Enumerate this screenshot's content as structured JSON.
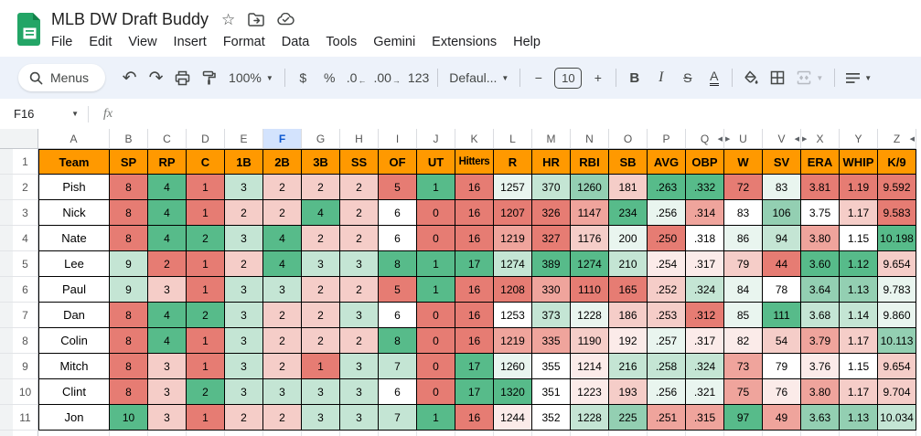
{
  "titlebar": {
    "title": "MLB DW Draft Buddy",
    "icons": [
      "star-icon",
      "move-folder-icon",
      "cloud-saved-icon"
    ],
    "menus": [
      "File",
      "Edit",
      "View",
      "Insert",
      "Format",
      "Data",
      "Tools",
      "Gemini",
      "Extensions",
      "Help"
    ]
  },
  "toolbar": {
    "menus_label": "Menus",
    "zoom_value": "100%",
    "currency_label": "$",
    "percent_label": "%",
    "decrease_decimal_label": ".0",
    "increase_decimal_label": ".00",
    "more_formats_label": "123",
    "font_value": "Defaul...",
    "font_size_value": "10",
    "bold_label": "B",
    "italic_label": "I",
    "strikethrough_label": "S",
    "text_color_label": "A"
  },
  "formula_bar": {
    "name_box_value": "F16",
    "fx_label": "fx"
  },
  "colors": {
    "header_fill": "#ff9900",
    "selected_column_bg": "#d3e3fd",
    "selected_column_text": "#0b57d0",
    "toolbar_bg": "#edf2fa",
    "scale_min_red": "#e67c73",
    "scale_mid_white": "#ffffff",
    "scale_max_green": "#57bb8a"
  },
  "sheet": {
    "palette": {
      "p3": "#E67C73",
      "p2": "#EFA49C",
      "p1": "#F5CDC8",
      "p0": "#FBEBE9",
      "w": "#FFFFFF",
      "g0": "#E9F5EF",
      "g1": "#C4E5D4",
      "g2": "#93CFB2",
      "g3": "#57BB8A"
    },
    "columns": [
      {
        "letter": "A",
        "wide": true
      },
      {
        "letter": "B"
      },
      {
        "letter": "C"
      },
      {
        "letter": "D"
      },
      {
        "letter": "E"
      },
      {
        "letter": "F",
        "selected": true
      },
      {
        "letter": "G"
      },
      {
        "letter": "H"
      },
      {
        "letter": "I"
      },
      {
        "letter": "J"
      },
      {
        "letter": "K"
      },
      {
        "letter": "L"
      },
      {
        "letter": "M"
      },
      {
        "letter": "N"
      },
      {
        "letter": "O"
      },
      {
        "letter": "P"
      },
      {
        "letter": "Q",
        "hidden_after": true
      },
      {
        "letter": "U",
        "hidden_before": true
      },
      {
        "letter": "V",
        "hidden_after": true
      },
      {
        "letter": "X",
        "hidden_before": true
      },
      {
        "letter": "Y"
      },
      {
        "letter": "Z",
        "hidden_after": true
      }
    ],
    "header_row": {
      "row_num": "1",
      "cells": [
        "Team",
        "SP",
        "RP",
        "C",
        "1B",
        "2B",
        "3B",
        "SS",
        "OF",
        "UT",
        "Hitters",
        "R",
        "HR",
        "RBI",
        "SB",
        "AVG",
        "OBP",
        "W",
        "SV",
        "ERA",
        "WHIP",
        "K/9"
      ]
    },
    "rows": [
      {
        "n": "2",
        "team": "Pish",
        "cells": [
          [
            "8",
            "p3"
          ],
          [
            "4",
            "g3"
          ],
          [
            "1",
            "p3"
          ],
          [
            "3",
            "g1"
          ],
          [
            "2",
            "p1"
          ],
          [
            "2",
            "p1"
          ],
          [
            "2",
            "p1"
          ],
          [
            "5",
            "p3"
          ],
          [
            "1",
            "g3"
          ],
          [
            "16",
            "p3"
          ],
          [
            "1257",
            "g0"
          ],
          [
            "370",
            "g1"
          ],
          [
            "1260",
            "g2"
          ],
          [
            "181",
            "p1"
          ],
          [
            ".263",
            "g3"
          ],
          [
            ".332",
            "g3"
          ],
          [
            "72",
            "p3"
          ],
          [
            "83",
            "g0"
          ],
          [
            "3.81",
            "p3"
          ],
          [
            "1.19",
            "p3"
          ],
          [
            "9.592",
            "p3"
          ]
        ]
      },
      {
        "n": "3",
        "team": "Nick",
        "cells": [
          [
            "8",
            "p3"
          ],
          [
            "4",
            "g3"
          ],
          [
            "1",
            "p3"
          ],
          [
            "2",
            "p1"
          ],
          [
            "2",
            "p1"
          ],
          [
            "4",
            "g3"
          ],
          [
            "2",
            "p1"
          ],
          [
            "6",
            "w"
          ],
          [
            "0",
            "p3"
          ],
          [
            "16",
            "p3"
          ],
          [
            "1207",
            "p3"
          ],
          [
            "326",
            "p3"
          ],
          [
            "1147",
            "p2"
          ],
          [
            "234",
            "g3"
          ],
          [
            ".256",
            "g0"
          ],
          [
            ".314",
            "p2"
          ],
          [
            "83",
            "w"
          ],
          [
            "106",
            "g2"
          ],
          [
            "3.75",
            "w"
          ],
          [
            "1.17",
            "p1"
          ],
          [
            "9.583",
            "p3"
          ]
        ]
      },
      {
        "n": "4",
        "team": "Nate",
        "cells": [
          [
            "8",
            "p3"
          ],
          [
            "4",
            "g3"
          ],
          [
            "2",
            "g3"
          ],
          [
            "3",
            "g1"
          ],
          [
            "4",
            "g3"
          ],
          [
            "2",
            "p1"
          ],
          [
            "2",
            "p1"
          ],
          [
            "6",
            "w"
          ],
          [
            "0",
            "p3"
          ],
          [
            "16",
            "p3"
          ],
          [
            "1219",
            "p2"
          ],
          [
            "327",
            "p3"
          ],
          [
            "1176",
            "p1"
          ],
          [
            "200",
            "g0"
          ],
          [
            ".250",
            "p3"
          ],
          [
            ".318",
            "w"
          ],
          [
            "86",
            "g0"
          ],
          [
            "94",
            "g1"
          ],
          [
            "3.80",
            "p2"
          ],
          [
            "1.15",
            "w"
          ],
          [
            "10.198",
            "g3"
          ]
        ]
      },
      {
        "n": "5",
        "team": "Lee",
        "cells": [
          [
            "9",
            "g1"
          ],
          [
            "2",
            "p3"
          ],
          [
            "1",
            "p3"
          ],
          [
            "2",
            "p1"
          ],
          [
            "4",
            "g3"
          ],
          [
            "3",
            "g1"
          ],
          [
            "3",
            "g1"
          ],
          [
            "8",
            "g3"
          ],
          [
            "1",
            "g3"
          ],
          [
            "17",
            "g3"
          ],
          [
            "1274",
            "g1"
          ],
          [
            "389",
            "g3"
          ],
          [
            "1274",
            "g3"
          ],
          [
            "210",
            "g1"
          ],
          [
            ".254",
            "p0"
          ],
          [
            ".317",
            "p0"
          ],
          [
            "79",
            "p1"
          ],
          [
            "44",
            "p3"
          ],
          [
            "3.60",
            "g3"
          ],
          [
            "1.12",
            "g3"
          ],
          [
            "9.654",
            "p1"
          ]
        ]
      },
      {
        "n": "6",
        "team": "Paul",
        "cells": [
          [
            "9",
            "g1"
          ],
          [
            "3",
            "p1"
          ],
          [
            "1",
            "p3"
          ],
          [
            "3",
            "g1"
          ],
          [
            "3",
            "g1"
          ],
          [
            "2",
            "p1"
          ],
          [
            "2",
            "p1"
          ],
          [
            "5",
            "p3"
          ],
          [
            "1",
            "g3"
          ],
          [
            "16",
            "p3"
          ],
          [
            "1208",
            "p3"
          ],
          [
            "330",
            "p2"
          ],
          [
            "1110",
            "p3"
          ],
          [
            "165",
            "p3"
          ],
          [
            ".252",
            "p1"
          ],
          [
            ".324",
            "g1"
          ],
          [
            "84",
            "g0"
          ],
          [
            "78",
            "w"
          ],
          [
            "3.64",
            "g2"
          ],
          [
            "1.13",
            "g2"
          ],
          [
            "9.783",
            "g0"
          ]
        ]
      },
      {
        "n": "7",
        "team": "Dan",
        "cells": [
          [
            "8",
            "p3"
          ],
          [
            "4",
            "g3"
          ],
          [
            "2",
            "g3"
          ],
          [
            "3",
            "g1"
          ],
          [
            "2",
            "p1"
          ],
          [
            "2",
            "p1"
          ],
          [
            "3",
            "g1"
          ],
          [
            "6",
            "w"
          ],
          [
            "0",
            "p3"
          ],
          [
            "16",
            "p3"
          ],
          [
            "1253",
            "w"
          ],
          [
            "373",
            "g1"
          ],
          [
            "1228",
            "g0"
          ],
          [
            "186",
            "p1"
          ],
          [
            ".253",
            "p1"
          ],
          [
            ".312",
            "p3"
          ],
          [
            "85",
            "g0"
          ],
          [
            "111",
            "g3"
          ],
          [
            "3.68",
            "g1"
          ],
          [
            "1.14",
            "g1"
          ],
          [
            "9.860",
            "g0"
          ]
        ]
      },
      {
        "n": "8",
        "team": "Colin",
        "cells": [
          [
            "8",
            "p3"
          ],
          [
            "4",
            "g3"
          ],
          [
            "1",
            "p3"
          ],
          [
            "3",
            "g1"
          ],
          [
            "2",
            "p1"
          ],
          [
            "2",
            "p1"
          ],
          [
            "2",
            "p1"
          ],
          [
            "8",
            "g3"
          ],
          [
            "0",
            "p3"
          ],
          [
            "16",
            "p3"
          ],
          [
            "1219",
            "p2"
          ],
          [
            "335",
            "p2"
          ],
          [
            "1190",
            "p1"
          ],
          [
            "192",
            "p0"
          ],
          [
            ".257",
            "g0"
          ],
          [
            ".317",
            "p0"
          ],
          [
            "82",
            "p0"
          ],
          [
            "54",
            "p1"
          ],
          [
            "3.79",
            "p2"
          ],
          [
            "1.17",
            "p1"
          ],
          [
            "10.113",
            "g2"
          ]
        ]
      },
      {
        "n": "9",
        "team": "Mitch",
        "cells": [
          [
            "8",
            "p3"
          ],
          [
            "3",
            "p1"
          ],
          [
            "1",
            "p3"
          ],
          [
            "3",
            "g1"
          ],
          [
            "2",
            "p1"
          ],
          [
            "1",
            "p3"
          ],
          [
            "3",
            "g1"
          ],
          [
            "7",
            "g1"
          ],
          [
            "0",
            "p3"
          ],
          [
            "17",
            "g3"
          ],
          [
            "1260",
            "g0"
          ],
          [
            "355",
            "w"
          ],
          [
            "1214",
            "p0"
          ],
          [
            "216",
            "g1"
          ],
          [
            ".258",
            "g1"
          ],
          [
            ".324",
            "g1"
          ],
          [
            "73",
            "p2"
          ],
          [
            "79",
            "w"
          ],
          [
            "3.76",
            "p0"
          ],
          [
            "1.15",
            "w"
          ],
          [
            "9.654",
            "p1"
          ]
        ]
      },
      {
        "n": "10",
        "team": "Clint",
        "cells": [
          [
            "8",
            "p3"
          ],
          [
            "3",
            "p1"
          ],
          [
            "2",
            "g3"
          ],
          [
            "3",
            "g1"
          ],
          [
            "3",
            "g1"
          ],
          [
            "3",
            "g1"
          ],
          [
            "3",
            "g1"
          ],
          [
            "6",
            "w"
          ],
          [
            "0",
            "p3"
          ],
          [
            "17",
            "g3"
          ],
          [
            "1320",
            "g3"
          ],
          [
            "351",
            "w"
          ],
          [
            "1223",
            "p0"
          ],
          [
            "193",
            "p1"
          ],
          [
            ".256",
            "g0"
          ],
          [
            ".321",
            "g0"
          ],
          [
            "75",
            "p2"
          ],
          [
            "76",
            "p0"
          ],
          [
            "3.80",
            "p2"
          ],
          [
            "1.17",
            "p1"
          ],
          [
            "9.704",
            "p1"
          ]
        ]
      },
      {
        "n": "11",
        "team": "Jon",
        "cells": [
          [
            "10",
            "g3"
          ],
          [
            "3",
            "p1"
          ],
          [
            "1",
            "p3"
          ],
          [
            "2",
            "p1"
          ],
          [
            "2",
            "p1"
          ],
          [
            "3",
            "g1"
          ],
          [
            "3",
            "g1"
          ],
          [
            "7",
            "g1"
          ],
          [
            "1",
            "g3"
          ],
          [
            "16",
            "p3"
          ],
          [
            "1244",
            "p0"
          ],
          [
            "352",
            "w"
          ],
          [
            "1228",
            "g1"
          ],
          [
            "225",
            "g2"
          ],
          [
            ".251",
            "p2"
          ],
          [
            ".315",
            "p2"
          ],
          [
            "97",
            "g3"
          ],
          [
            "49",
            "p2"
          ],
          [
            "3.63",
            "g2"
          ],
          [
            "1.13",
            "g2"
          ],
          [
            "10.034",
            "g1"
          ]
        ]
      }
    ]
  }
}
